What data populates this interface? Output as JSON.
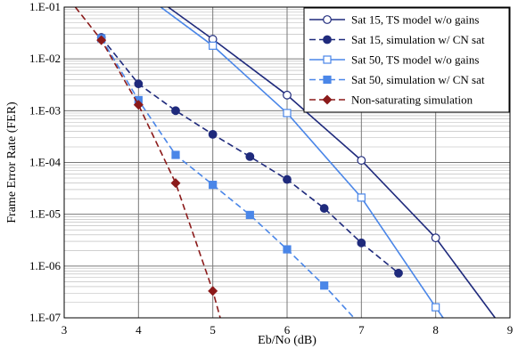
{
  "chart_data": {
    "type": "line",
    "xlabel": "Eb/No (dB)",
    "ylabel": "Frame Error Rate (FER)",
    "xlim": [
      3,
      9
    ],
    "ylim": [
      1e-07,
      0.1
    ],
    "yscale": "log",
    "grid": true,
    "legend_position": "top-right",
    "x_ticks": [
      "3",
      "4",
      "5",
      "6",
      "7",
      "8",
      "9"
    ],
    "y_ticks": [
      "1.E-07",
      "1.E-06",
      "1.E-05",
      "1.E-04",
      "1.E-03",
      "1.E-02",
      "1.E-01"
    ],
    "series": [
      {
        "name": "Sat 15, TS model w/o gains",
        "color": "#1f2a7c",
        "dash": "solid",
        "marker": "circle-open",
        "line_points": [
          [
            4.4,
            0.1
          ],
          [
            5,
            0.024
          ],
          [
            6,
            0.002
          ],
          [
            7,
            0.00011
          ],
          [
            8,
            3.5e-06
          ],
          [
            8.8,
            1e-07
          ]
        ],
        "marker_points": [
          [
            5,
            0.024
          ],
          [
            6,
            0.002
          ],
          [
            7,
            0.00011
          ],
          [
            8,
            3.5e-06
          ]
        ]
      },
      {
        "name": "Sat 15, simulation w/ CN sat",
        "color": "#1f2a7c",
        "dash": "dashed",
        "marker": "circle-filled",
        "line_points": [
          [
            3.5,
            0.026
          ],
          [
            4,
            0.0033
          ],
          [
            4.5,
            0.001
          ],
          [
            5,
            0.00035
          ],
          [
            5.5,
            0.00013
          ],
          [
            6,
            4.7e-05
          ],
          [
            6.5,
            1.3e-05
          ],
          [
            7,
            2.8e-06
          ],
          [
            7.5,
            7.3e-07
          ]
        ],
        "marker_points": [
          [
            3.5,
            0.026
          ],
          [
            4,
            0.0033
          ],
          [
            4.5,
            0.001
          ],
          [
            5,
            0.00035
          ],
          [
            5.5,
            0.00013
          ],
          [
            6,
            4.7e-05
          ],
          [
            6.5,
            1.3e-05
          ],
          [
            7,
            2.8e-06
          ],
          [
            7.5,
            7.3e-07
          ]
        ]
      },
      {
        "name": "Sat 50, TS model w/o gains",
        "color": "#4a86e8",
        "dash": "solid",
        "marker": "square-open",
        "line_points": [
          [
            4.3,
            0.1
          ],
          [
            5,
            0.018
          ],
          [
            6,
            0.0009
          ],
          [
            7,
            2.1e-05
          ],
          [
            8,
            1.6e-07
          ],
          [
            8.1,
            1e-07
          ]
        ],
        "marker_points": [
          [
            5,
            0.018
          ],
          [
            6,
            0.0009
          ],
          [
            7,
            2.1e-05
          ],
          [
            8,
            1.6e-07
          ]
        ]
      },
      {
        "name": "Sat 50, simulation w/ CN sat",
        "color": "#4a86e8",
        "dash": "dashed",
        "marker": "square-filled",
        "line_points": [
          [
            3.5,
            0.025
          ],
          [
            4,
            0.0016
          ],
          [
            4.5,
            0.00014
          ],
          [
            5,
            3.7e-05
          ],
          [
            5.5,
            9.7e-06
          ],
          [
            6,
            2.1e-06
          ],
          [
            6.5,
            4.2e-07
          ],
          [
            6.9,
            1e-07
          ]
        ],
        "marker_points": [
          [
            3.5,
            0.025
          ],
          [
            4,
            0.0016
          ],
          [
            4.5,
            0.00014
          ],
          [
            5,
            3.7e-05
          ],
          [
            5.5,
            9.7e-06
          ],
          [
            6,
            2.1e-06
          ],
          [
            6.5,
            4.2e-07
          ]
        ]
      },
      {
        "name": "Non-saturating simulation",
        "color": "#8b1a1a",
        "dash": "dashed",
        "marker": "diamond-filled",
        "line_points": [
          [
            3.15,
            0.1
          ],
          [
            3.5,
            0.023
          ],
          [
            4,
            0.0013
          ],
          [
            4.5,
            4e-05
          ],
          [
            5,
            3.3e-07
          ],
          [
            5.1,
            1e-07
          ]
        ],
        "marker_points": [
          [
            3.5,
            0.023
          ],
          [
            4,
            0.0013
          ],
          [
            4.5,
            4e-05
          ],
          [
            5,
            3.3e-07
          ]
        ]
      }
    ]
  }
}
